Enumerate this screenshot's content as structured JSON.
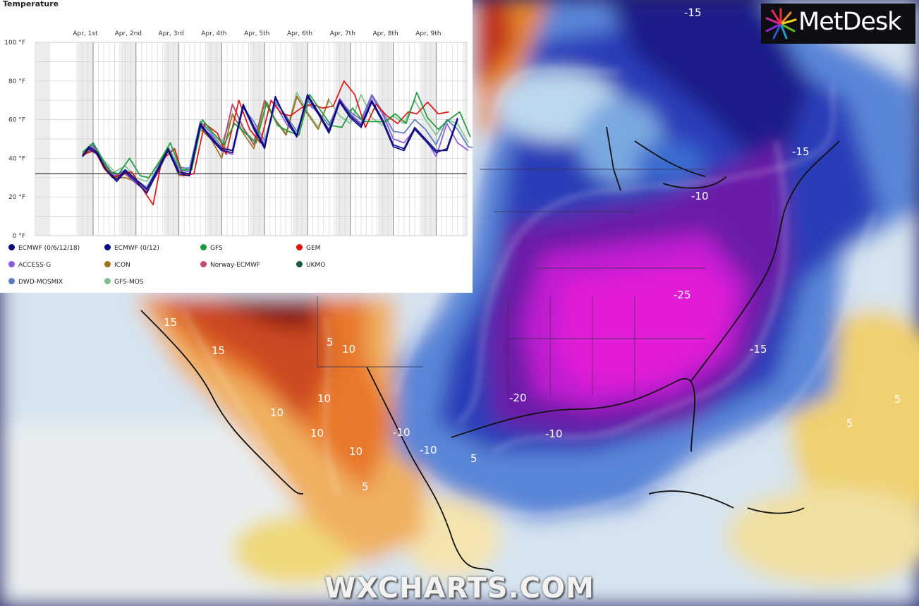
{
  "panel": {
    "title": "Temperature"
  },
  "legend": [
    {
      "name": "ECMWF (0/6/12/18)",
      "color": "#0a0a7a"
    },
    {
      "name": "ECMWF (0/12)",
      "color": "#0a0a8c"
    },
    {
      "name": "GFS",
      "color": "#1a9a3a"
    },
    {
      "name": "GEM",
      "color": "#e01010"
    },
    {
      "name": "ACCESS-G",
      "color": "#8a5ad8"
    },
    {
      "name": "ICON",
      "color": "#a07020"
    },
    {
      "name": "Norway-ECMWF",
      "color": "#c04a7a"
    },
    {
      "name": "UKMO",
      "color": "#1a5a3a"
    },
    {
      "name": "DWD-MOSMIX",
      "color": "#5a7ac0"
    },
    {
      "name": "GFS-MOS",
      "color": "#80c090"
    }
  ],
  "chart_data": {
    "type": "line",
    "title": "Temperature",
    "x_tick_labels": [
      "Apr, 1st",
      "Apr, 2nd",
      "Apr, 3rd",
      "Apr, 4th",
      "Apr, 5th",
      "Apr, 6th",
      "Apr, 7th",
      "Apr, 8th",
      "Apr, 9th"
    ],
    "y_tick_labels": [
      "100 °F",
      "80 °F",
      "60 °F",
      "40 °F",
      "20 °F",
      "0 °F"
    ],
    "ylim": [
      0,
      100
    ],
    "xlim": [
      -0.35,
      9.2
    ],
    "reference_line": 32,
    "grid": true,
    "x_unit": "day offset from Apr 1st (0 = Apr 1st)",
    "series": [
      {
        "name": "ECMWF (0/6/12/18)",
        "color": "#0a0a7a",
        "x": [
          -0.25,
          -0.1,
          0.1,
          0.3,
          0.55,
          0.75,
          1.0,
          1.25,
          1.5,
          1.75,
          2.0,
          2.25,
          2.5,
          2.75,
          3.0,
          3.25,
          3.5,
          3.75,
          4.0,
          4.25,
          4.5,
          4.75,
          5.0,
          5.25,
          5.5,
          5.75,
          6.0,
          6.25,
          6.5,
          6.75,
          7.0,
          7.25,
          7.5,
          7.75,
          8.0,
          8.25,
          8.5
        ],
        "y": [
          41,
          46,
          43,
          34,
          29,
          34,
          29,
          24,
          34,
          45,
          33,
          32,
          58,
          51,
          45,
          44,
          68,
          56,
          46,
          71,
          61,
          52,
          73,
          64,
          54,
          70,
          62,
          57,
          70,
          60,
          47,
          45,
          56,
          50,
          44,
          44,
          60
        ]
      },
      {
        "name": "ECMWF (0/12)",
        "color": "#0a0a8c",
        "x": [
          -0.25,
          -0.1,
          0.1,
          0.3,
          0.55,
          0.75,
          1.0,
          1.25,
          1.5,
          1.75,
          2.0,
          2.25,
          2.5,
          2.75,
          3.0,
          3.25,
          3.5,
          3.75,
          4.0,
          4.25,
          4.5,
          4.75,
          5.0,
          5.25,
          5.5,
          5.75,
          6.0,
          6.25,
          6.5,
          6.75,
          7.0,
          7.25,
          7.5,
          7.75,
          8.0,
          8.25,
          8.5
        ],
        "y": [
          41,
          45,
          42,
          34,
          28,
          33,
          28,
          22,
          33,
          44,
          32,
          31,
          57,
          50,
          44,
          43,
          67,
          55,
          45,
          72,
          60,
          51,
          72,
          63,
          53,
          69,
          61,
          56,
          69,
          59,
          46,
          44,
          55,
          49,
          43,
          45,
          61
        ]
      },
      {
        "name": "GFS",
        "color": "#1a9a3a",
        "x": [
          -0.25,
          0.0,
          0.2,
          0.4,
          0.6,
          0.85,
          1.1,
          1.3,
          1.55,
          1.8,
          2.05,
          2.3,
          2.55,
          2.8,
          3.05,
          3.3,
          3.55,
          3.8,
          4.05,
          4.3,
          4.55,
          4.8,
          5.05,
          5.3,
          5.55,
          5.8,
          6.05,
          6.3,
          6.55,
          6.8,
          7.05,
          7.3,
          7.55,
          7.8,
          8.05,
          8.3,
          8.55,
          8.8
        ],
        "y": [
          43,
          48,
          40,
          33,
          32,
          40,
          31,
          30,
          38,
          48,
          34,
          34,
          60,
          53,
          47,
          58,
          53,
          48,
          69,
          57,
          54,
          52,
          73,
          65,
          57,
          56,
          66,
          59,
          59,
          59,
          63,
          58,
          74,
          61,
          55,
          60,
          64,
          51
        ]
      },
      {
        "name": "GEM",
        "color": "#e01010",
        "x": [
          -0.25,
          0.05,
          0.25,
          0.45,
          0.7,
          0.9,
          1.1,
          1.4,
          1.6,
          1.9,
          2.1,
          2.35,
          2.6,
          2.9,
          3.1,
          3.4,
          3.65,
          3.9,
          4.15,
          4.4,
          4.6,
          4.85,
          5.1,
          5.35,
          5.6,
          5.85,
          6.1,
          6.35,
          6.6,
          6.85,
          7.1,
          7.35,
          7.55,
          7.8,
          8.05,
          8.3
        ],
        "y": [
          42,
          44,
          35,
          30,
          32,
          33,
          26,
          16,
          39,
          45,
          31,
          32,
          58,
          53,
          42,
          70,
          55,
          48,
          70,
          63,
          62,
          66,
          68,
          66,
          67,
          80,
          73,
          56,
          68,
          62,
          58,
          64,
          63,
          69,
          63,
          64
        ]
      },
      {
        "name": "ACCESS-G",
        "color": "#8a5ad8",
        "x": [
          -0.25,
          0.0,
          0.25,
          0.5,
          0.75,
          1.0,
          1.25,
          1.5,
          1.75,
          2.0,
          2.25,
          2.5,
          2.75,
          3.0,
          3.25,
          3.5,
          3.75,
          4.0,
          4.25,
          4.5,
          4.75,
          5.0,
          5.25,
          5.5,
          5.75,
          6.0,
          6.25,
          6.5,
          6.75,
          7.0,
          7.25,
          7.5,
          7.75,
          8.0,
          8.25,
          8.5,
          8.75
        ],
        "y": [
          42,
          46,
          38,
          31,
          33,
          27,
          24,
          32,
          44,
          34,
          33,
          56,
          52,
          44,
          42,
          67,
          57,
          47,
          68,
          58,
          52,
          70,
          63,
          55,
          71,
          63,
          58,
          72,
          63,
          50,
          48,
          55,
          50,
          41,
          58,
          48,
          44
        ]
      },
      {
        "name": "ICON",
        "color": "#a07020",
        "x": [
          -0.25,
          0.0,
          0.25,
          0.5,
          0.75,
          1.0,
          1.25,
          1.5,
          1.75,
          2.0,
          2.25,
          2.5,
          2.75,
          3.0,
          3.25,
          3.5,
          3.75,
          4.0,
          4.25,
          4.5,
          4.75,
          5.0,
          5.25,
          5.5
        ],
        "y": [
          41,
          46,
          37,
          30,
          30,
          28,
          22,
          33,
          45,
          31,
          32,
          55,
          50,
          40,
          63,
          53,
          45,
          69,
          60,
          52,
          72,
          63,
          55,
          71
        ]
      },
      {
        "name": "Norway-ECMWF",
        "color": "#c04a7a",
        "x": [
          -0.25,
          0.0,
          0.25,
          0.5,
          0.75,
          1.0,
          1.25,
          1.5,
          1.75,
          2.0,
          2.25,
          2.5,
          2.75,
          3.0,
          3.25,
          3.5,
          3.75,
          4.0,
          4.25,
          4.5,
          4.75,
          5.0
        ],
        "y": [
          41,
          45,
          36,
          30,
          32,
          27,
          23,
          33,
          44,
          32,
          31,
          57,
          50,
          44,
          68,
          56,
          47,
          70,
          60,
          52,
          72,
          63
        ]
      },
      {
        "name": "UKMO",
        "color": "#1a5a3a",
        "x": [
          -0.25,
          0.0,
          0.25,
          0.5,
          0.75,
          1.0,
          1.25,
          1.5,
          1.75,
          2.0,
          2.25,
          2.5,
          2.75,
          3.0,
          3.25,
          3.5,
          3.75,
          4.0,
          4.25,
          4.5,
          4.75,
          5.0
        ],
        "y": [
          41,
          45,
          36,
          30,
          32,
          27,
          23,
          33,
          44,
          32,
          31,
          57,
          50,
          44,
          68,
          56,
          47,
          70,
          60,
          52,
          72,
          63
        ]
      },
      {
        "name": "DWD-MOSMIX",
        "color": "#5a7ac0",
        "x": [
          -0.25,
          0.0,
          0.25,
          0.5,
          0.75,
          1.0,
          1.25,
          1.5,
          1.75,
          2.0,
          2.25,
          2.5,
          2.75,
          3.0,
          3.25,
          3.5,
          3.75,
          4.0,
          4.25,
          4.5,
          4.75,
          5.0,
          5.25,
          5.5,
          5.75,
          6.0,
          6.25,
          6.5,
          6.75,
          7.0,
          7.25,
          7.5,
          7.75,
          8.0,
          8.25,
          8.5,
          8.75,
          9.0
        ],
        "y": [
          42,
          47,
          37,
          31,
          34,
          29,
          25,
          35,
          45,
          35,
          35,
          59,
          53,
          46,
          44,
          66,
          59,
          49,
          69,
          62,
          54,
          68,
          64,
          57,
          70,
          64,
          60,
          73,
          64,
          54,
          53,
          60,
          55,
          47,
          60,
          55,
          46,
          45
        ]
      },
      {
        "name": "GFS-MOS",
        "color": "#80c090",
        "x": [
          -0.25,
          0.0,
          0.25,
          0.5,
          0.75,
          1.0,
          1.25,
          1.5,
          1.75,
          2.0,
          2.25,
          2.5,
          2.75,
          3.0,
          3.25,
          3.5,
          3.75,
          4.0,
          4.25,
          4.5,
          4.75,
          5.0,
          5.25,
          5.5,
          5.75,
          6.0,
          6.25,
          6.5,
          6.75,
          7.0,
          7.25,
          7.5,
          7.75,
          8.0,
          8.25,
          8.5,
          8.75
        ],
        "y": [
          43,
          48,
          39,
          33,
          36,
          30,
          28,
          37,
          46,
          36,
          34,
          59,
          54,
          48,
          62,
          55,
          49,
          69,
          60,
          53,
          74,
          64,
          56,
          70,
          62,
          58,
          73,
          61,
          57,
          62,
          58,
          70,
          60,
          52,
          60,
          58,
          48
        ]
      }
    ]
  },
  "map": {
    "contour_labels": [
      "-15",
      "-15",
      "-15",
      "-10",
      "-10",
      "-10",
      "-10",
      "-20",
      "-25",
      "15",
      "15",
      "10",
      "10",
      "10",
      "10",
      "10",
      "5",
      "5",
      "5",
      "5",
      "5"
    ],
    "colors": {
      "magenta": "#e21ad6",
      "purple": "#7a1ca8",
      "navy": "#1c1a8a",
      "blue": "#2852c8",
      "light_blue": "#9cc4e4",
      "pale": "#dde8f2",
      "yellow": "#f0d070",
      "orange": "#e8862a",
      "red": "#c0341e",
      "dark_red": "#8a1a18"
    }
  },
  "logo": {
    "text": "MetDesk",
    "icon": "starburst-icon"
  },
  "watermark": "WXCHARTS.COM"
}
